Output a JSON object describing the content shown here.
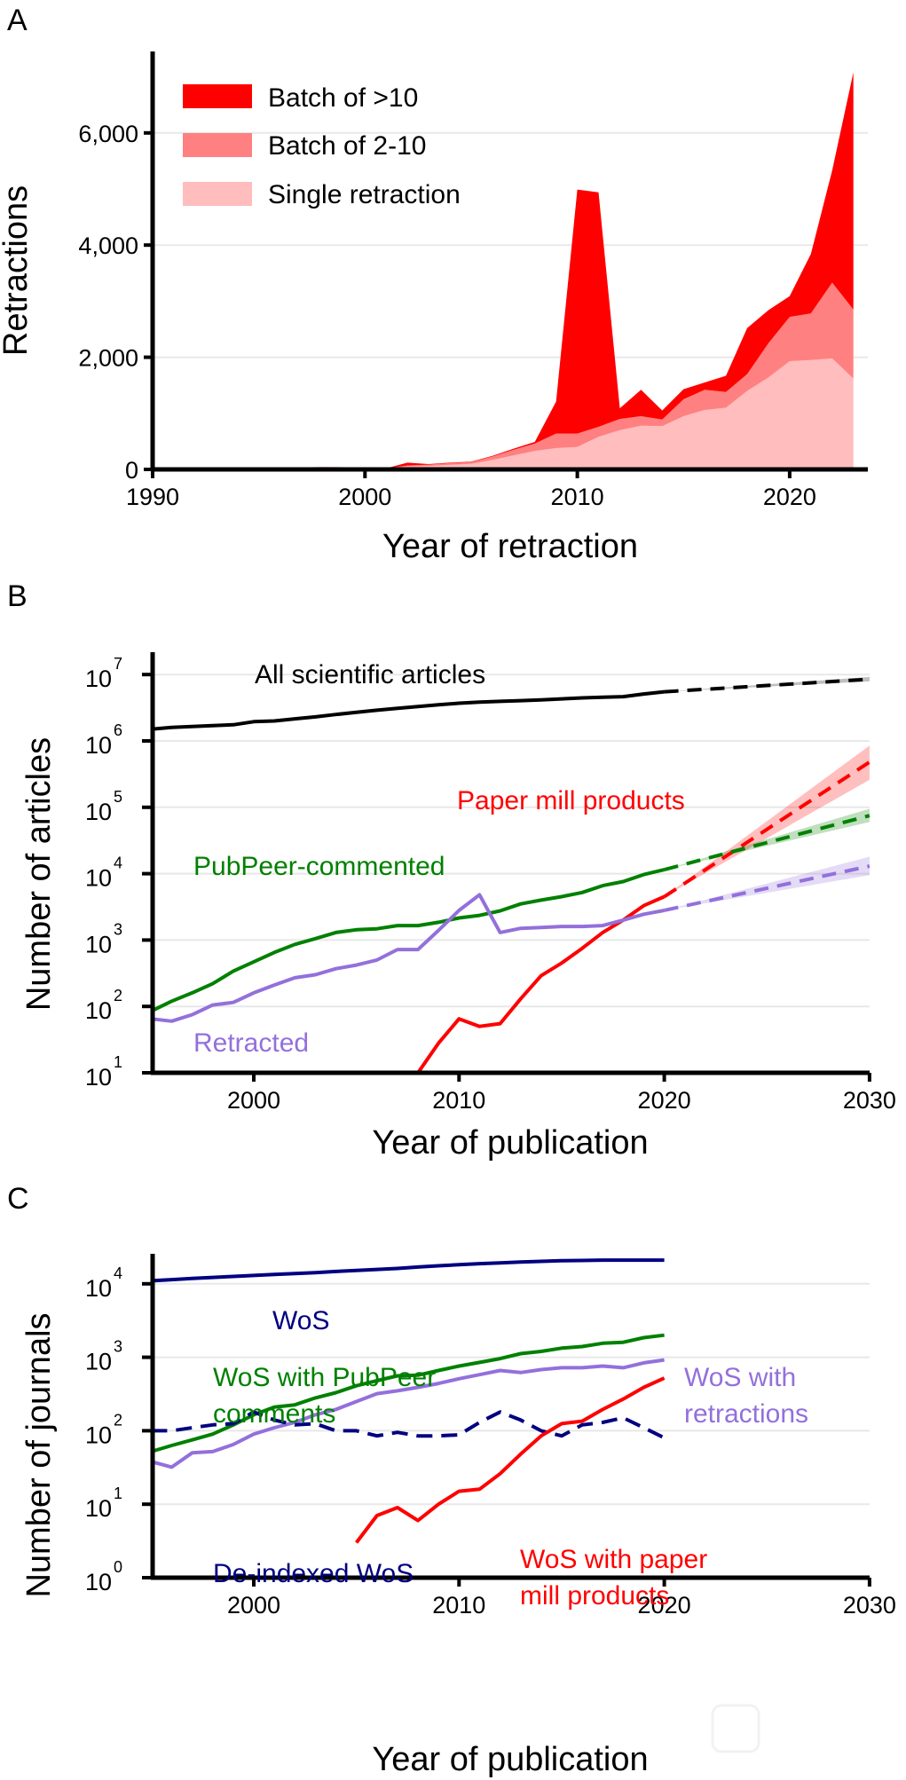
{
  "chart_data": [
    {
      "panel": "A",
      "type": "area",
      "stacked": true,
      "xlabel": "Year of retraction",
      "ylabel": "Retractions",
      "xlim": [
        1990,
        2023
      ],
      "ylim": [
        0,
        7200
      ],
      "xticks": [
        1990,
        2000,
        2010,
        2020
      ],
      "xtick_labels": [
        "1990",
        "2000",
        "2010",
        "2020"
      ],
      "yticks": [
        0,
        2000,
        4000,
        6000
      ],
      "ytick_labels": [
        "0",
        "2,000",
        "4,000",
        "6,000"
      ],
      "grid": "horizontal",
      "legend_position": "top-left",
      "x": [
        1990,
        1991,
        1992,
        1993,
        1994,
        1995,
        1996,
        1997,
        1998,
        1999,
        2000,
        2001,
        2002,
        2003,
        2004,
        2005,
        2006,
        2007,
        2008,
        2009,
        2010,
        2011,
        2012,
        2013,
        2014,
        2015,
        2016,
        2017,
        2018,
        2019,
        2020,
        2021,
        2022,
        2023
      ],
      "series": [
        {
          "name": "Single retraction",
          "color": "#ffbdbd",
          "values": [
            5,
            5,
            5,
            5,
            5,
            10,
            15,
            30,
            40,
            35,
            25,
            20,
            50,
            60,
            80,
            100,
            170,
            250,
            330,
            380,
            400,
            580,
            700,
            780,
            770,
            950,
            1060,
            1100,
            1400,
            1640,
            1930,
            1950,
            1980,
            1620
          ]
        },
        {
          "name": "Batch of 2-10",
          "color": "#ff8080",
          "values": [
            0,
            0,
            0,
            0,
            0,
            0,
            0,
            5,
            5,
            5,
            0,
            0,
            20,
            25,
            30,
            30,
            60,
            100,
            130,
            260,
            240,
            180,
            200,
            170,
            120,
            300,
            360,
            280,
            300,
            610,
            790,
            830,
            1350,
            1230
          ]
        },
        {
          "name": "Batch of >10",
          "color": "#ff0000",
          "values": [
            0,
            0,
            0,
            0,
            0,
            0,
            0,
            0,
            0,
            0,
            0,
            0,
            50,
            10,
            10,
            10,
            10,
            20,
            30,
            570,
            4350,
            4180,
            190,
            470,
            160,
            180,
            130,
            290,
            820,
            590,
            370,
            1060,
            2000,
            4230
          ]
        }
      ],
      "legend": [
        "Batch of >10",
        "Batch of 2-10",
        "Single retraction"
      ]
    },
    {
      "panel": "B",
      "type": "line",
      "yscale": "log",
      "xlabel": "Year of publication",
      "ylabel": "Number of articles",
      "xlim": [
        1995,
        2030
      ],
      "ylim": [
        10,
        20000000
      ],
      "xticks": [
        2000,
        2010,
        2020,
        2030
      ],
      "xtick_labels": [
        "2000",
        "2010",
        "2020",
        "2030"
      ],
      "yticks_exponents": [
        1,
        2,
        3,
        4,
        5,
        6,
        7
      ],
      "grid": "horizontal",
      "x": [
        1995,
        1996,
        1997,
        1998,
        1999,
        2000,
        2001,
        2002,
        2003,
        2004,
        2005,
        2006,
        2007,
        2008,
        2009,
        2010,
        2011,
        2012,
        2013,
        2014,
        2015,
        2016,
        2017,
        2018,
        2019,
        2020
      ],
      "series": [
        {
          "name": "All scientific articles",
          "color": "#000000",
          "values": [
            1500000,
            1600000,
            1650000,
            1700000,
            1750000,
            1950000,
            2000000,
            2150000,
            2300000,
            2500000,
            2700000,
            2900000,
            3100000,
            3300000,
            3500000,
            3700000,
            3850000,
            3950000,
            4050000,
            4150000,
            4300000,
            4450000,
            4550000,
            4650000,
            5100000,
            5500000
          ],
          "projection": {
            "x": [
              2020,
              2030
            ],
            "values": [
              5500000,
              8500000
            ],
            "band": [
              [
                5500000,
                5500000
              ],
              [
                7900000,
                9200000
              ]
            ]
          }
        },
        {
          "name": "Paper mill products",
          "color": "#ff0000",
          "values": [
            null,
            null,
            null,
            null,
            null,
            null,
            null,
            null,
            null,
            null,
            null,
            null,
            null,
            10,
            28,
            65,
            50,
            55,
            130,
            290,
            450,
            750,
            1300,
            2000,
            3300,
            4500
          ],
          "projection": {
            "x": [
              2020,
              2030
            ],
            "values": [
              4500,
              480000
            ],
            "band": [
              [
                4500,
                4500
              ],
              [
                260000,
                850000
              ]
            ]
          }
        },
        {
          "name": "PubPeer-commented",
          "color": "#008000",
          "values": [
            85,
            120,
            160,
            220,
            340,
            470,
            650,
            860,
            1050,
            1300,
            1430,
            1480,
            1650,
            1650,
            1850,
            2150,
            2350,
            2750,
            3500,
            4000,
            4500,
            5200,
            6600,
            7600,
            9700,
            11500
          ],
          "projection": {
            "x": [
              2020,
              2030
            ],
            "values": [
              11500,
              75000
            ],
            "band": [
              [
                11500,
                11500
              ],
              [
                60000,
                95000
              ]
            ]
          }
        },
        {
          "name": "Retracted",
          "color": "#9370db",
          "values": [
            65,
            60,
            75,
            105,
            115,
            160,
            210,
            270,
            300,
            370,
            420,
            500,
            720,
            720,
            1400,
            2800,
            4800,
            1300,
            1500,
            1550,
            1600,
            1600,
            1650,
            2000,
            2450,
            2800
          ],
          "projection": {
            "x": [
              2020,
              2030
            ],
            "values": [
              2800,
              13000
            ],
            "band": [
              [
                2800,
                2800
              ],
              [
                9500,
                18000
              ]
            ]
          }
        }
      ],
      "annotations": [
        "All scientific articles",
        "Paper mill products",
        "PubPeer-commented",
        "Retracted"
      ]
    },
    {
      "panel": "C",
      "type": "line",
      "yscale": "log",
      "xlabel": "Year of publication",
      "ylabel": "Number of journals",
      "xlim": [
        1995,
        2030
      ],
      "ylim": [
        1,
        30000
      ],
      "xticks": [
        2000,
        2010,
        2020,
        2030
      ],
      "xtick_labels": [
        "2000",
        "2010",
        "2020",
        "2030"
      ],
      "yticks_exponents": [
        0,
        1,
        2,
        3,
        4
      ],
      "grid": "horizontal",
      "x": [
        1995,
        1996,
        1997,
        1998,
        1999,
        2000,
        2001,
        2002,
        2003,
        2004,
        2005,
        2006,
        2007,
        2008,
        2009,
        2010,
        2011,
        2012,
        2013,
        2014,
        2015,
        2016,
        2017,
        2018,
        2019,
        2020
      ],
      "series": [
        {
          "name": "WoS",
          "color": "#000080",
          "dashed": false,
          "values": [
            11000,
            11400,
            11800,
            12200,
            12600,
            13000,
            13400,
            13800,
            14200,
            14700,
            15200,
            15700,
            16200,
            16900,
            17600,
            18200,
            18800,
            19300,
            19800,
            20200,
            20600,
            20800,
            21000,
            21000,
            21000,
            21000
          ]
        },
        {
          "name": "WoS with PubPeer comments",
          "color": "#008000",
          "dashed": false,
          "values": [
            52,
            63,
            75,
            90,
            120,
            165,
            210,
            225,
            280,
            330,
            410,
            480,
            560,
            570,
            660,
            760,
            850,
            960,
            1120,
            1200,
            1330,
            1400,
            1550,
            1600,
            1850,
            2000
          ]
        },
        {
          "name": "WoS with retractions",
          "color": "#9370db",
          "dashed": false,
          "values": [
            38,
            32,
            50,
            52,
            65,
            90,
            110,
            130,
            165,
            195,
            250,
            320,
            350,
            390,
            440,
            510,
            580,
            660,
            620,
            680,
            720,
            720,
            760,
            720,
            840,
            920
          ]
        },
        {
          "name": "De-indexed WoS",
          "color": "#000080",
          "dashed": true,
          "values": [
            100,
            100,
            110,
            120,
            125,
            180,
            140,
            120,
            125,
            100,
            100,
            85,
            95,
            85,
            85,
            88,
            130,
            180,
            140,
            100,
            85,
            120,
            130,
            150,
            110,
            80
          ]
        },
        {
          "name": "WoS with paper mill products",
          "color": "#ff0000",
          "dashed": false,
          "values": [
            null,
            null,
            null,
            null,
            null,
            null,
            null,
            null,
            null,
            null,
            3,
            7,
            9,
            6,
            10,
            15,
            16,
            26,
            48,
            85,
            125,
            135,
            195,
            270,
            390,
            520
          ]
        }
      ],
      "annotations": [
        "WoS",
        "WoS with PubPeer comments",
        "WoS with retractions",
        "De-indexed WoS",
        "WoS with paper mill products"
      ]
    }
  ],
  "panels": {
    "a": {
      "letter": "A",
      "xlabel": "Year of retraction",
      "ylabel": "Retractions",
      "legend": [
        "Batch of >10",
        "Batch of 2-10",
        "Single retraction"
      ]
    },
    "b": {
      "letter": "B",
      "xlabel": "Year of publication",
      "ylabel": "Number of articles",
      "labels": {
        "all": "All scientific articles",
        "mill": "Paper mill products",
        "pubpeer": "PubPeer-commented",
        "retracted": "Retracted"
      }
    },
    "c": {
      "letter": "C",
      "xlabel": "Year of publication",
      "ylabel": "Number of journals",
      "labels": {
        "wos": "WoS",
        "pubpeer_1": "WoS with PubPeer",
        "pubpeer_2": "comments",
        "retractions_1": "WoS with",
        "retractions_2": "retractions",
        "deindexed": "De-indexed WoS",
        "mill_1": "WoS with paper",
        "mill_2": "mill products"
      }
    }
  },
  "colors": {
    "red": "#ff0000",
    "red_mid": "#ff8080",
    "red_light": "#ffbdbd",
    "green": "#008000",
    "purple": "#9370db",
    "navy": "#000080",
    "black": "#000000"
  }
}
